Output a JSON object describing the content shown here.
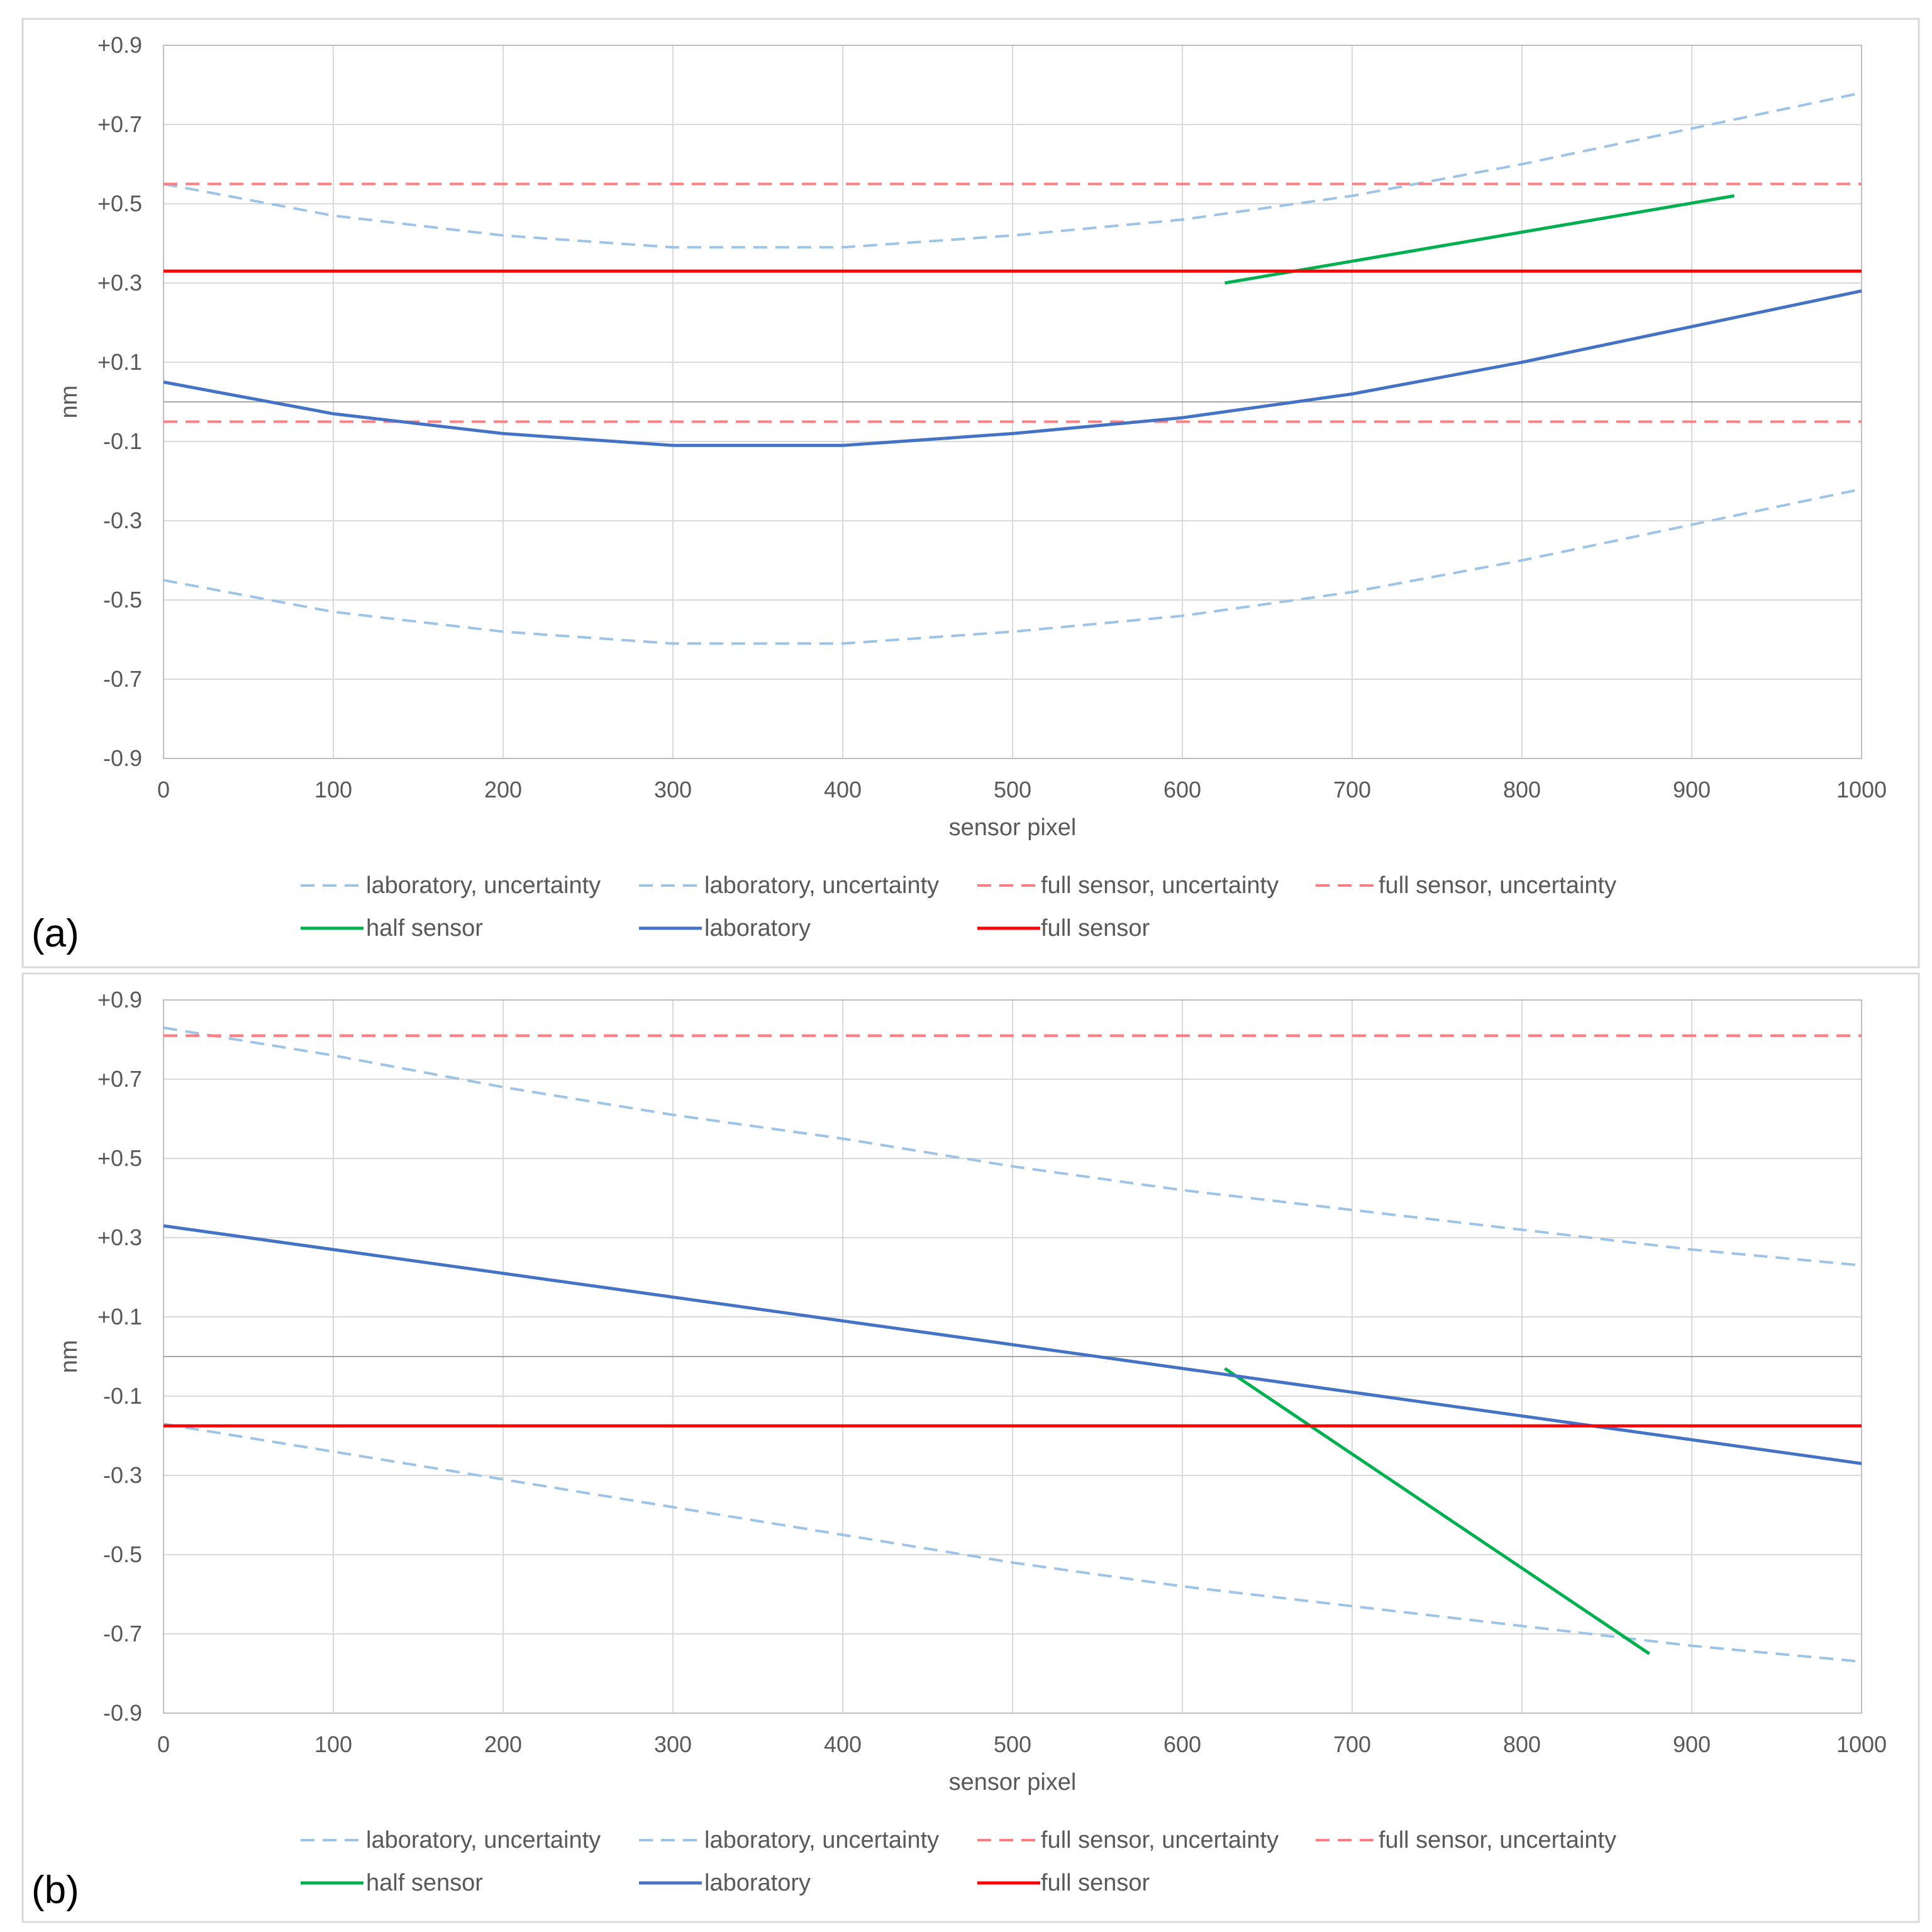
{
  "chart_data": [
    {
      "panel_label": "(a)",
      "type": "line",
      "xlabel": "sensor pixel",
      "ylabel": "nm",
      "xlim": [
        0,
        1000
      ],
      "ylim": [
        -0.9,
        0.9
      ],
      "x_ticks": [
        "0",
        "100",
        "200",
        "300",
        "400",
        "500",
        "600",
        "700",
        "800",
        "900",
        "1000"
      ],
      "y_ticks": [
        "+0.9",
        "+0.7",
        "+0.5",
        "+0.3",
        "+0.1",
        "-0.1",
        "-0.3",
        "-0.5",
        "-0.7",
        "-0.9"
      ],
      "grid": true,
      "legend_position": "bottom",
      "series": [
        {
          "name": "laboratory, uncertainty",
          "color": "#9dc3e6",
          "dash": true,
          "x": [
            0,
            100,
            200,
            300,
            400,
            500,
            600,
            700,
            800,
            900,
            1000
          ],
          "y": [
            0.55,
            0.47,
            0.42,
            0.39,
            0.39,
            0.42,
            0.46,
            0.52,
            0.6,
            0.69,
            0.78
          ]
        },
        {
          "name": "laboratory, uncertainty",
          "color": "#9dc3e6",
          "dash": true,
          "x": [
            0,
            100,
            200,
            300,
            400,
            500,
            600,
            700,
            800,
            900,
            1000
          ],
          "y": [
            -0.45,
            -0.53,
            -0.58,
            -0.61,
            -0.61,
            -0.58,
            -0.54,
            -0.48,
            -0.4,
            -0.31,
            -0.22
          ]
        },
        {
          "name": "full sensor, uncertainty",
          "color": "#ff7c80",
          "dash": true,
          "x": [
            0,
            1000
          ],
          "y": [
            0.55,
            0.55
          ]
        },
        {
          "name": "full sensor, uncertainty",
          "color": "#ff7c80",
          "dash": true,
          "x": [
            0,
            1000
          ],
          "y": [
            -0.05,
            -0.05
          ]
        },
        {
          "name": "half sensor",
          "color": "#00b050",
          "dash": false,
          "x": [
            625,
            925
          ],
          "y": [
            0.3,
            0.52
          ]
        },
        {
          "name": "laboratory",
          "color": "#4472c4",
          "dash": false,
          "x": [
            0,
            100,
            200,
            300,
            400,
            500,
            600,
            700,
            800,
            900,
            1000
          ],
          "y": [
            0.05,
            -0.03,
            -0.08,
            -0.11,
            -0.11,
            -0.08,
            -0.04,
            0.02,
            0.1,
            0.19,
            0.28
          ]
        },
        {
          "name": "full sensor",
          "color": "#ff0000",
          "dash": false,
          "x": [
            0,
            1000
          ],
          "y": [
            0.33,
            0.33
          ]
        }
      ]
    },
    {
      "panel_label": "(b)",
      "type": "line",
      "xlabel": "sensor pixel",
      "ylabel": "nm",
      "xlim": [
        0,
        1000
      ],
      "ylim": [
        -0.9,
        0.9
      ],
      "x_ticks": [
        "0",
        "100",
        "200",
        "300",
        "400",
        "500",
        "600",
        "700",
        "800",
        "900",
        "1000"
      ],
      "y_ticks": [
        "+0.9",
        "+0.7",
        "+0.5",
        "+0.3",
        "+0.1",
        "-0.1",
        "-0.3",
        "-0.5",
        "-0.7",
        "-0.9"
      ],
      "grid": true,
      "legend_position": "bottom",
      "series": [
        {
          "name": "laboratory, uncertainty",
          "color": "#9dc3e6",
          "dash": true,
          "x": [
            0,
            100,
            200,
            300,
            400,
            500,
            600,
            700,
            800,
            900,
            1000
          ],
          "y": [
            0.83,
            0.76,
            0.68,
            0.61,
            0.55,
            0.48,
            0.42,
            0.37,
            0.32,
            0.27,
            0.23
          ]
        },
        {
          "name": "laboratory, uncertainty",
          "color": "#9dc3e6",
          "dash": true,
          "x": [
            0,
            100,
            200,
            300,
            400,
            500,
            600,
            700,
            800,
            900,
            1000
          ],
          "y": [
            -0.17,
            -0.24,
            -0.31,
            -0.38,
            -0.45,
            -0.52,
            -0.58,
            -0.63,
            -0.68,
            -0.73,
            -0.77
          ]
        },
        {
          "name": "full sensor, uncertainty",
          "color": "#ff7c80",
          "dash": true,
          "x": [
            0,
            1000
          ],
          "y": [
            0.81,
            0.81
          ]
        },
        {
          "name": "full sensor, uncertainty",
          "color": "#ff7c80",
          "dash": true,
          "x": [
            0,
            1000
          ],
          "y": [
            0.81,
            0.81
          ]
        },
        {
          "name": "half sensor",
          "color": "#00b050",
          "dash": false,
          "x": [
            625,
            875
          ],
          "y": [
            -0.03,
            -0.75
          ]
        },
        {
          "name": "laboratory",
          "color": "#4472c4",
          "dash": false,
          "x": [
            0,
            1000
          ],
          "y": [
            0.33,
            -0.27
          ]
        },
        {
          "name": "full sensor",
          "color": "#ff0000",
          "dash": false,
          "x": [
            0,
            1000
          ],
          "y": [
            -0.175,
            -0.175
          ]
        }
      ]
    }
  ]
}
